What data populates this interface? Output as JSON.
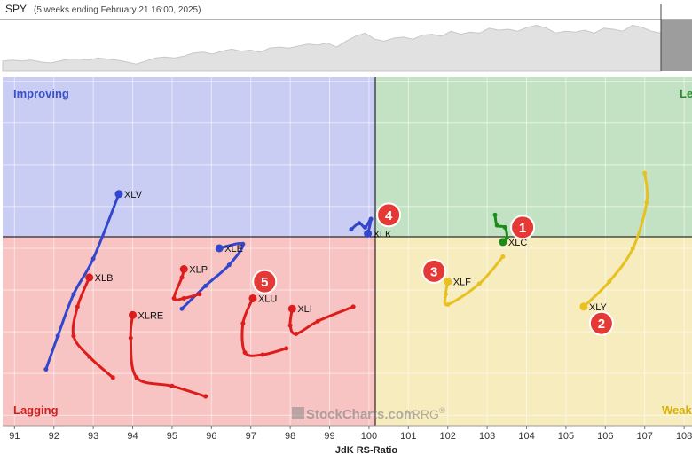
{
  "header": {
    "symbol": "SPY",
    "subtitle": "(5 weeks ending February 21 16:00, 2025)"
  },
  "quadrants": {
    "improving": "Improving",
    "leading": "Le",
    "lagging": "Lagging",
    "weakening": "Weak"
  },
  "watermark": {
    "brand": "StockCharts.com",
    "suffix": "/ RRG",
    "reg": "®"
  },
  "colors": {
    "improving_bg": "#c9cdf3",
    "leading_bg": "#c3e2c3",
    "lagging_bg": "#f7c3c3",
    "weakening_bg": "#f7ecbe",
    "improving_text": "#3a50c8",
    "leading_text": "#2e8a2e",
    "lagging_text": "#d02020",
    "weakening_text": "#d8b000",
    "badge": "#e53935"
  },
  "chart_data": {
    "type": "scatter",
    "title": "",
    "xlabel": "JdK RS-Ratio",
    "ylabel": "",
    "xlim": [
      90.7,
      108.2
    ],
    "ylim": [
      95.75,
      104.1
    ],
    "x_ticks": [
      91,
      92,
      93,
      94,
      95,
      96,
      97,
      98,
      99,
      100,
      101,
      102,
      103,
      104,
      105,
      106,
      107,
      108
    ],
    "center": [
      100,
      100
    ],
    "grid": true,
    "series": [
      {
        "name": "XLV",
        "color": "#3347cc",
        "points": [
          [
            91.8,
            97.1
          ],
          [
            92.1,
            97.9
          ],
          [
            92.5,
            98.9
          ],
          [
            93.0,
            99.75
          ],
          [
            93.65,
            101.3
          ]
        ]
      },
      {
        "name": "XLK",
        "color": "#3347cc",
        "points": [
          [
            99.55,
            100.45
          ],
          [
            99.75,
            100.6
          ],
          [
            99.9,
            100.5
          ],
          [
            100.05,
            100.7
          ],
          [
            99.97,
            100.35
          ]
        ]
      },
      {
        "name": "XLE",
        "color": "#3347cc",
        "points": [
          [
            95.25,
            98.55
          ],
          [
            95.85,
            99.1
          ],
          [
            96.45,
            99.6
          ],
          [
            96.8,
            100.1
          ],
          [
            96.2,
            100.0
          ]
        ]
      },
      {
        "name": "XLC",
        "color": "#1a8c1a",
        "points": [
          [
            103.2,
            100.8
          ],
          [
            103.25,
            100.55
          ],
          [
            103.45,
            100.5
          ],
          [
            103.5,
            100.25
          ],
          [
            103.4,
            100.15
          ]
        ]
      },
      {
        "name": "XLF",
        "color": "#e8c020",
        "points": [
          [
            103.4,
            99.8
          ],
          [
            102.8,
            99.15
          ],
          [
            102.0,
            98.65
          ],
          [
            101.95,
            98.9
          ],
          [
            102.0,
            99.2
          ]
        ]
      },
      {
        "name": "XLY",
        "color": "#e8c020",
        "points": [
          [
            107.0,
            101.8
          ],
          [
            107.05,
            101.1
          ],
          [
            106.7,
            100.0
          ],
          [
            106.1,
            99.2
          ],
          [
            105.45,
            98.6
          ]
        ]
      },
      {
        "name": "XLB",
        "color": "#dd1c1c",
        "points": [
          [
            93.5,
            96.9
          ],
          [
            92.9,
            97.4
          ],
          [
            92.5,
            97.9
          ],
          [
            92.6,
            98.6
          ],
          [
            92.9,
            99.3
          ]
        ]
      },
      {
        "name": "XLRE",
        "color": "#dd1c1c",
        "points": [
          [
            95.85,
            96.45
          ],
          [
            95.0,
            96.7
          ],
          [
            94.1,
            96.9
          ],
          [
            93.95,
            97.85
          ],
          [
            94.0,
            98.4
          ]
        ]
      },
      {
        "name": "XLP",
        "color": "#dd1c1c",
        "points": [
          [
            95.7,
            98.9
          ],
          [
            95.3,
            98.8
          ],
          [
            95.05,
            98.8
          ],
          [
            95.25,
            99.3
          ],
          [
            95.3,
            99.5
          ]
        ]
      },
      {
        "name": "XLU",
        "color": "#dd1c1c",
        "points": [
          [
            97.9,
            97.6
          ],
          [
            97.3,
            97.45
          ],
          [
            96.85,
            97.5
          ],
          [
            96.8,
            98.2
          ],
          [
            97.05,
            98.8
          ]
        ]
      },
      {
        "name": "XLI",
        "color": "#dd1c1c",
        "points": [
          [
            99.6,
            98.6
          ],
          [
            98.7,
            98.25
          ],
          [
            98.15,
            97.95
          ],
          [
            98.0,
            98.15
          ],
          [
            98.05,
            98.55
          ]
        ]
      }
    ],
    "annotations": [
      {
        "label": "1",
        "x": 103.9,
        "y": 100.5
      },
      {
        "label": "2",
        "x": 105.9,
        "y": 98.2
      },
      {
        "label": "3",
        "x": 101.65,
        "y": 99.45
      },
      {
        "label": "4",
        "x": 100.5,
        "y": 100.8
      },
      {
        "label": "5",
        "x": 97.35,
        "y": 99.2
      }
    ],
    "price_strip": {
      "type": "area",
      "values": [
        30,
        31,
        30,
        31,
        29,
        28,
        30,
        32,
        32,
        31,
        33,
        32,
        31,
        29,
        27,
        30,
        33,
        34,
        33,
        35,
        38,
        39,
        37,
        40,
        42,
        40,
        41,
        39,
        43,
        44,
        43,
        45,
        47,
        46,
        48,
        44,
        50,
        55,
        58,
        52,
        50,
        53,
        54,
        52,
        56,
        57,
        55,
        60,
        57,
        59,
        58,
        63,
        61,
        62,
        60,
        64,
        66,
        63,
        58,
        60,
        59,
        61,
        58,
        63,
        62,
        60,
        66,
        64,
        60,
        58
      ],
      "ylim": [
        20,
        70
      ]
    }
  }
}
